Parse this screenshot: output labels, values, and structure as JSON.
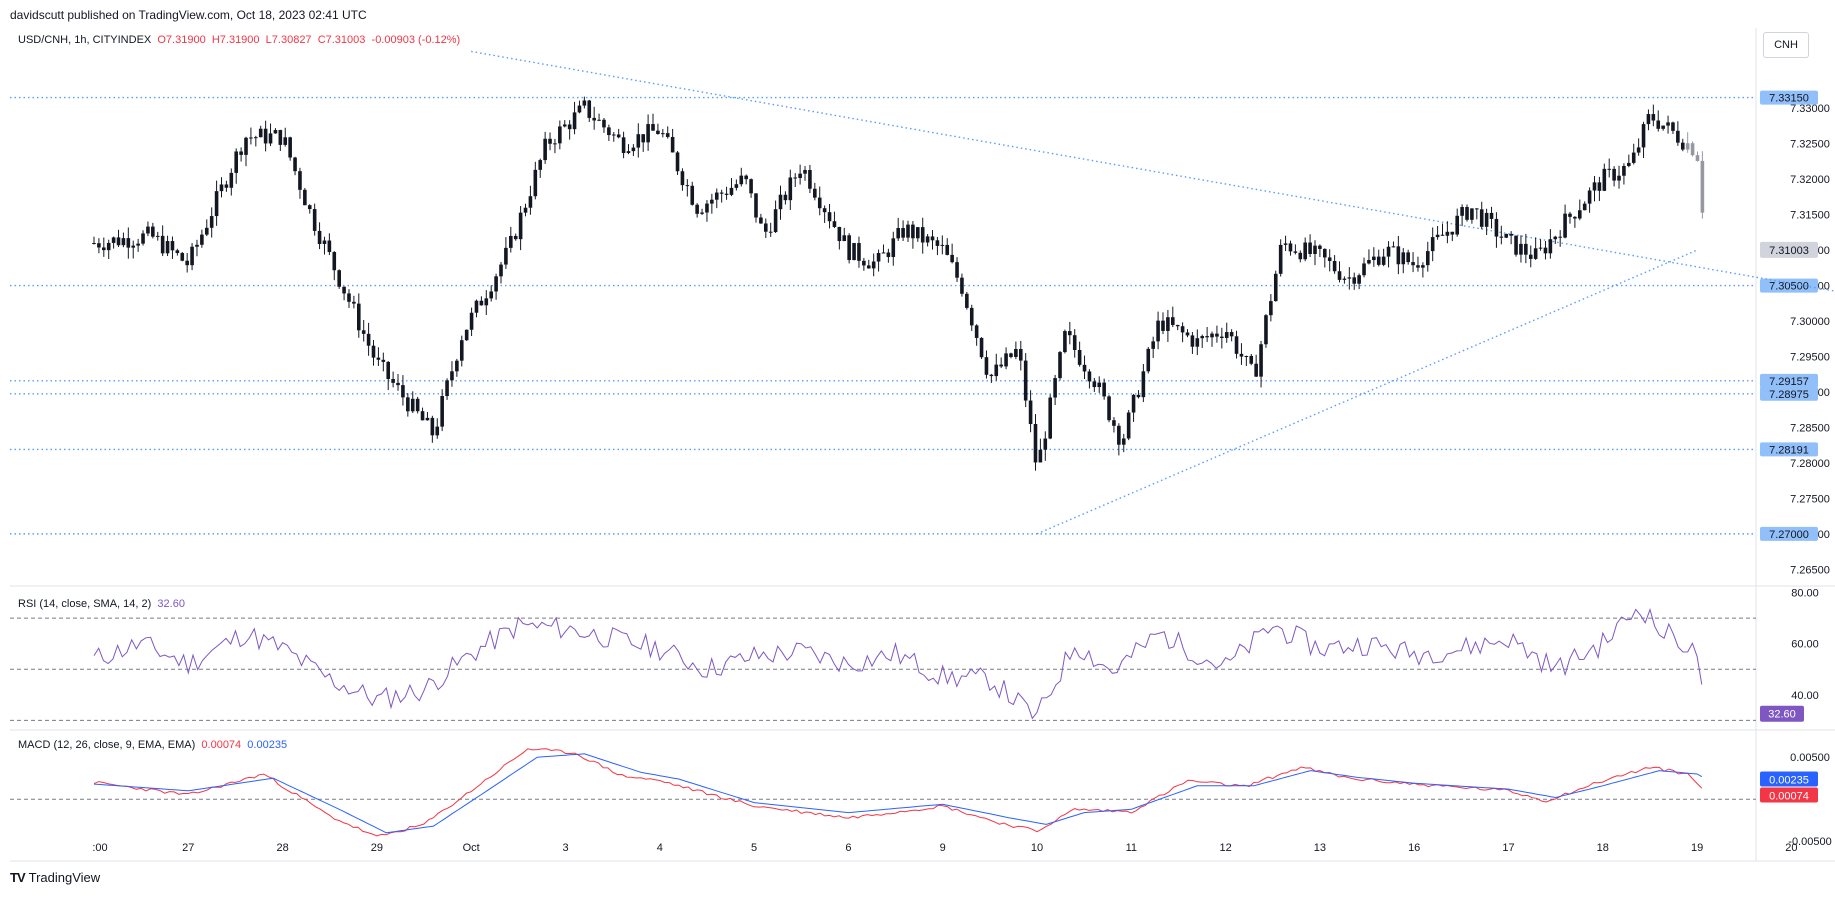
{
  "header": {
    "published": "davidscutt published on TradingView.com, Oct 18, 2023 02:41 UTC"
  },
  "main_legend": {
    "symbol": "USD/CNH, 1h, CITYINDEX",
    "open": "O7.31900",
    "high": "H7.31900",
    "low": "L7.30827",
    "close": "C7.31003",
    "change": "-0.00903 (-0.12%)"
  },
  "currency": "CNH",
  "rsi_legend": {
    "label": "RSI (14, close, SMA, 14, 2)",
    "value": "32.60"
  },
  "macd_legend": {
    "label": "MACD (12, 26, close, 9, EMA, EMA)",
    "macd": "0.00074",
    "signal": "0.00235"
  },
  "logo_text": "TradingView",
  "colors": {
    "up": "#131722",
    "down": "#131722",
    "recent": "#9598a1",
    "trendline": "#5b9cf6",
    "rsi": "#7e57c2",
    "macd": "#f23645",
    "signal": "#2962ff",
    "price_badge": "#d1d4dc",
    "level_badge": "#90bff9"
  },
  "chart_data": [
    {
      "type": "candlestick",
      "title": "USD/CNH, 1h, CITYINDEX",
      "yticks": [
        "7.33000",
        "7.32500",
        "7.32000",
        "7.31500",
        "7.31000",
        "7.30500",
        "7.30000",
        "7.29500",
        "7.29000",
        "7.28500",
        "7.28000",
        "7.27500",
        "7.27000",
        "7.26500"
      ],
      "ylim": [
        7.2635,
        7.3375
      ],
      "xticks": [
        ":00",
        "27",
        "28",
        "29",
        "Oct",
        "3",
        "4",
        "5",
        "6",
        "9",
        "10",
        "11",
        "12",
        "13",
        "16",
        "17",
        "18",
        "19",
        "20"
      ],
      "current_price": "7.31003",
      "levels": [
        {
          "label": "7.33150",
          "value": 7.3315
        },
        {
          "label": "7.30500",
          "value": 7.305
        },
        {
          "label": "7.29157",
          "value": 7.29157
        },
        {
          "label": "7.28975",
          "value": 7.28975
        },
        {
          "label": "7.28191",
          "value": 7.28191
        },
        {
          "label": "7.27000",
          "value": 7.27
        }
      ],
      "trendlines": [
        {
          "name": "descending",
          "from": [
            4.0,
            7.338
          ],
          "to": [
            19.2,
            7.3025
          ]
        },
        {
          "name": "ascending",
          "from": [
            10.0,
            7.27
          ],
          "to": [
            17.0,
            7.31
          ]
        }
      ],
      "path_points": [
        [
          0,
          7.311
        ],
        [
          0.6,
          7.312
        ],
        [
          1.0,
          7.308
        ],
        [
          1.6,
          7.326
        ],
        [
          2.0,
          7.326
        ],
        [
          2.3,
          7.315
        ],
        [
          2.6,
          7.306
        ],
        [
          3.0,
          7.294
        ],
        [
          3.3,
          7.289
        ],
        [
          3.6,
          7.284
        ],
        [
          3.9,
          7.298
        ],
        [
          4.4,
          7.31
        ],
        [
          4.8,
          7.325
        ],
        [
          5.2,
          7.33
        ],
        [
          5.6,
          7.325
        ],
        [
          6.0,
          7.327
        ],
        [
          6.4,
          7.316
        ],
        [
          6.9,
          7.32
        ],
        [
          7.1,
          7.312
        ],
        [
          7.5,
          7.322
        ],
        [
          8.0,
          7.31
        ],
        [
          8.3,
          7.308
        ],
        [
          8.6,
          7.313
        ],
        [
          9.0,
          7.31
        ],
        [
          9.2,
          7.305
        ],
        [
          9.5,
          7.292
        ],
        [
          9.8,
          7.296
        ],
        [
          10.0,
          7.279
        ],
        [
          10.3,
          7.298
        ],
        [
          10.6,
          7.292
        ],
        [
          10.9,
          7.283
        ],
        [
          11.3,
          7.3
        ],
        [
          11.7,
          7.297
        ],
        [
          12.0,
          7.299
        ],
        [
          12.3,
          7.292
        ],
        [
          12.6,
          7.311
        ],
        [
          13.0,
          7.309
        ],
        [
          13.3,
          7.306
        ],
        [
          13.7,
          7.31
        ],
        [
          14.0,
          7.308
        ],
        [
          14.3,
          7.312
        ],
        [
          14.6,
          7.316
        ],
        [
          15.0,
          7.311
        ],
        [
          15.3,
          7.309
        ],
        [
          15.6,
          7.314
        ],
        [
          16.0,
          7.32
        ],
        [
          16.3,
          7.322
        ],
        [
          16.5,
          7.329
        ],
        [
          16.8,
          7.326
        ],
        [
          17.0,
          7.324
        ],
        [
          17.1,
          7.31
        ]
      ]
    },
    {
      "type": "line",
      "title": "RSI (14, close, SMA, 14, 2)",
      "yticks": [
        "80.00",
        "60.00",
        "40.00"
      ],
      "ylim": [
        27,
        81
      ],
      "bands": [
        70,
        50,
        30
      ],
      "current": "32.60",
      "path_points": [
        [
          0,
          54
        ],
        [
          0.5,
          60
        ],
        [
          1.0,
          52
        ],
        [
          1.6,
          64
        ],
        [
          2.0,
          58
        ],
        [
          2.5,
          46
        ],
        [
          3.0,
          38
        ],
        [
          3.5,
          42
        ],
        [
          4.0,
          56
        ],
        [
          4.5,
          67
        ],
        [
          5.0,
          66
        ],
        [
          5.5,
          62
        ],
        [
          6.0,
          58
        ],
        [
          6.5,
          50
        ],
        [
          7.0,
          55
        ],
        [
          7.5,
          57
        ],
        [
          8.0,
          52
        ],
        [
          8.5,
          56
        ],
        [
          9.0,
          47
        ],
        [
          9.5,
          46
        ],
        [
          10.0,
          31
        ],
        [
          10.4,
          60
        ],
        [
          10.8,
          49
        ],
        [
          11.3,
          64
        ],
        [
          11.8,
          54
        ],
        [
          12.0,
          51
        ],
        [
          12.5,
          67
        ],
        [
          13.0,
          58
        ],
        [
          13.5,
          60
        ],
        [
          14.0,
          56
        ],
        [
          14.5,
          58
        ],
        [
          15.0,
          62
        ],
        [
          15.5,
          50
        ],
        [
          16.0,
          60
        ],
        [
          16.4,
          75
        ],
        [
          16.6,
          65
        ],
        [
          16.8,
          62
        ],
        [
          17.0,
          55
        ],
        [
          17.1,
          33
        ]
      ]
    },
    {
      "type": "line",
      "title": "MACD (12, 26, close, 9, EMA, EMA)",
      "yticks": [
        "0.00500",
        "-0.00500"
      ],
      "ylim": [
        -0.007,
        0.008
      ],
      "series": [
        {
          "name": "MACD",
          "path_points": [
            [
              0,
              0.002
            ],
            [
              1.0,
              0.0005
            ],
            [
              1.8,
              0.003
            ],
            [
              2.5,
              -0.002
            ],
            [
              3.0,
              -0.0045
            ],
            [
              3.5,
              -0.003
            ],
            [
              4.0,
              0.001
            ],
            [
              4.6,
              0.006
            ],
            [
              5.1,
              0.0055
            ],
            [
              5.6,
              0.0028
            ],
            [
              6.0,
              0.0022
            ],
            [
              7.0,
              -0.0008
            ],
            [
              8.0,
              -0.0022
            ],
            [
              9.0,
              -0.0008
            ],
            [
              9.6,
              -0.0028
            ],
            [
              10.0,
              -0.0038
            ],
            [
              10.4,
              -0.0012
            ],
            [
              11.0,
              -0.0015
            ],
            [
              11.6,
              0.0022
            ],
            [
              12.2,
              0.0015
            ],
            [
              12.8,
              0.0038
            ],
            [
              13.3,
              0.0025
            ],
            [
              14.0,
              0.0018
            ],
            [
              15.0,
              0.001
            ],
            [
              15.4,
              -0.0002
            ],
            [
              16.0,
              0.0022
            ],
            [
              16.5,
              0.0038
            ],
            [
              16.9,
              0.003
            ],
            [
              17.1,
              0.00074
            ]
          ]
        },
        {
          "name": "Signal",
          "path_points": [
            [
              0,
              0.0018
            ],
            [
              1.0,
              0.001
            ],
            [
              1.9,
              0.0025
            ],
            [
              2.6,
              -0.0012
            ],
            [
              3.1,
              -0.004
            ],
            [
              3.6,
              -0.0032
            ],
            [
              4.1,
              0.0005
            ],
            [
              4.7,
              0.005
            ],
            [
              5.2,
              0.0054
            ],
            [
              5.8,
              0.0032
            ],
            [
              6.2,
              0.0024
            ],
            [
              7.0,
              -0.0004
            ],
            [
              8.0,
              -0.0016
            ],
            [
              9.0,
              -0.0006
            ],
            [
              9.7,
              -0.0022
            ],
            [
              10.1,
              -0.003
            ],
            [
              10.5,
              -0.0016
            ],
            [
              11.0,
              -0.0012
            ],
            [
              11.7,
              0.0016
            ],
            [
              12.3,
              0.0016
            ],
            [
              12.9,
              0.0034
            ],
            [
              13.4,
              0.0026
            ],
            [
              14.0,
              0.0019
            ],
            [
              15.0,
              0.0012
            ],
            [
              15.5,
              0.0002
            ],
            [
              16.0,
              0.0016
            ],
            [
              16.6,
              0.0034
            ],
            [
              17.0,
              0.003
            ],
            [
              17.1,
              0.00235
            ]
          ]
        }
      ],
      "current_macd": "0.00074",
      "current_signal": "0.00235"
    }
  ]
}
